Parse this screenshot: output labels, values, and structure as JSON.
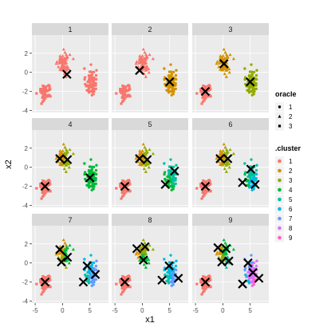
{
  "chart_data": {
    "type": "scatter",
    "title": "",
    "xlabel": "x1",
    "ylabel": "x2",
    "xlim": [
      -5.6,
      8.4
    ],
    "ylim": [
      -4.2,
      3.9
    ],
    "x_ticks": [
      -5,
      0,
      5
    ],
    "y_ticks": [
      -4,
      -2,
      0,
      2
    ],
    "grid": true,
    "facet_layout": {
      "rows": 3,
      "cols": 3
    },
    "panel_bg": "#ebebeb",
    "strip_bg": "#d9d9d9",
    "grid_color": "#ffffff",
    "facets": [
      {
        "label": "1",
        "centers": [
          [
            0.8,
            -0.2
          ]
        ]
      },
      {
        "label": "2",
        "centers": [
          [
            -0.5,
            0.2
          ],
          [
            5.0,
            -1.0
          ]
        ]
      },
      {
        "label": "3",
        "centers": [
          [
            -3.2,
            -2.0
          ],
          [
            0.2,
            0.9
          ],
          [
            5.0,
            -1.0
          ]
        ]
      },
      {
        "label": "4",
        "centers": [
          [
            -3.2,
            -2.0
          ],
          [
            -0.5,
            0.9
          ],
          [
            0.9,
            0.8
          ],
          [
            5.0,
            -1.1
          ]
        ]
      },
      {
        "label": "5",
        "centers": [
          [
            -3.2,
            -2.0
          ],
          [
            -0.5,
            0.9
          ],
          [
            0.9,
            0.8
          ],
          [
            4.2,
            -1.8
          ],
          [
            5.9,
            -0.4
          ]
        ]
      },
      {
        "label": "6",
        "centers": [
          [
            -3.2,
            -2.0
          ],
          [
            -0.5,
            0.9
          ],
          [
            0.9,
            0.9
          ],
          [
            3.6,
            -1.6
          ],
          [
            5.1,
            -0.2
          ],
          [
            5.9,
            -1.8
          ]
        ]
      },
      {
        "label": "7",
        "centers": [
          [
            -3.2,
            -2.0
          ],
          [
            -0.5,
            1.4
          ],
          [
            -0.2,
            0.1
          ],
          [
            0.9,
            0.6
          ],
          [
            3.8,
            -2.0
          ],
          [
            4.5,
            -0.3
          ],
          [
            6.0,
            -1.2
          ]
        ]
      },
      {
        "label": "8",
        "centers": [
          [
            -3.2,
            -2.0
          ],
          [
            -1.0,
            1.5
          ],
          [
            0.5,
            1.7
          ],
          [
            0.2,
            0.3
          ],
          [
            3.6,
            -1.8
          ],
          [
            4.9,
            -0.3
          ],
          [
            6.6,
            -1.6
          ]
        ]
      },
      {
        "label": "9",
        "centers": [
          [
            -3.2,
            -2.0
          ],
          [
            -0.9,
            1.6
          ],
          [
            -0.2,
            0.1
          ],
          [
            0.6,
            1.5
          ],
          [
            1.1,
            0.2
          ],
          [
            3.6,
            -2.2
          ],
          [
            4.6,
            0.0
          ],
          [
            5.5,
            -1.0
          ],
          [
            6.6,
            -1.6
          ]
        ]
      }
    ],
    "oracle_groups": [
      {
        "label": "1",
        "shape": "circle",
        "center": [
          5.2,
          -1.0
        ],
        "spread": [
          0.9,
          1.3
        ],
        "n": 80
      },
      {
        "label": "2",
        "shape": "triangle",
        "center": [
          0.2,
          1.0
        ],
        "spread": [
          1.0,
          1.0
        ],
        "n": 70
      },
      {
        "label": "3",
        "shape": "square",
        "center": [
          -3.2,
          -2.0
        ],
        "spread": [
          1.0,
          0.9
        ],
        "n": 60
      }
    ],
    "legends": [
      {
        "title": "oracle",
        "type": "shape",
        "items": [
          {
            "label": "1",
            "shape": "circle"
          },
          {
            "label": "2",
            "shape": "triangle"
          },
          {
            "label": "3",
            "shape": "square"
          }
        ]
      },
      {
        "title": ".cluster",
        "type": "color",
        "items": [
          {
            "label": "1",
            "color": "#f8766d"
          },
          {
            "label": "2",
            "color": "#d39200"
          },
          {
            "label": "3",
            "color": "#93aa00"
          },
          {
            "label": "4",
            "color": "#00ba38"
          },
          {
            "label": "5",
            "color": "#00c19f"
          },
          {
            "label": "6",
            "color": "#00b9e3"
          },
          {
            "label": "7",
            "color": "#619cff"
          },
          {
            "label": "8",
            "color": "#db72fb"
          },
          {
            "label": "9",
            "color": "#ff61c3"
          }
        ]
      }
    ],
    "legend_position": "right"
  }
}
